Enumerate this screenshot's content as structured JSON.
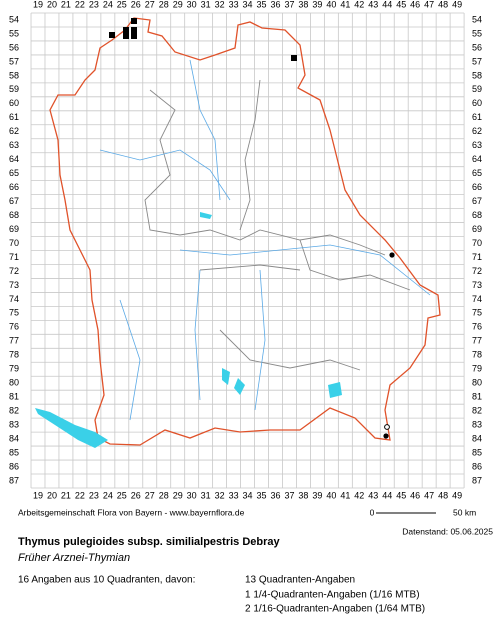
{
  "grid": {
    "columns": [
      19,
      20,
      21,
      22,
      23,
      24,
      25,
      26,
      27,
      28,
      29,
      30,
      31,
      32,
      33,
      34,
      35,
      36,
      37,
      38,
      39,
      40,
      41,
      42,
      43,
      44,
      45,
      46,
      47,
      48,
      49
    ],
    "rows": [
      54,
      55,
      56,
      57,
      58,
      59,
      60,
      61,
      62,
      63,
      64,
      65,
      66,
      67,
      68,
      69,
      70,
      71,
      72,
      73,
      74,
      75,
      76,
      77,
      78,
      79,
      80,
      81,
      82,
      83,
      84,
      85,
      86,
      87
    ]
  },
  "credit": "Arbeitsgemeinschaft Flora von Bayern - www.bayernflora.de",
  "scale": {
    "start": "0",
    "end": "50 km"
  },
  "date": "Datenstand: 05.06.2025",
  "title": "Thymus pulegioides subsp. similialpestris Debray",
  "subtitle": "Früher Arznei-Thymian",
  "summary": "16 Angaben aus 10 Quadranten, davon:",
  "breakdown": [
    "13 Quadranten-Angaben",
    "1 1/4-Quadranten-Angaben (1/16 MTB)",
    "2 1/16-Quadranten-Angaben (1/64 MTB)"
  ]
}
